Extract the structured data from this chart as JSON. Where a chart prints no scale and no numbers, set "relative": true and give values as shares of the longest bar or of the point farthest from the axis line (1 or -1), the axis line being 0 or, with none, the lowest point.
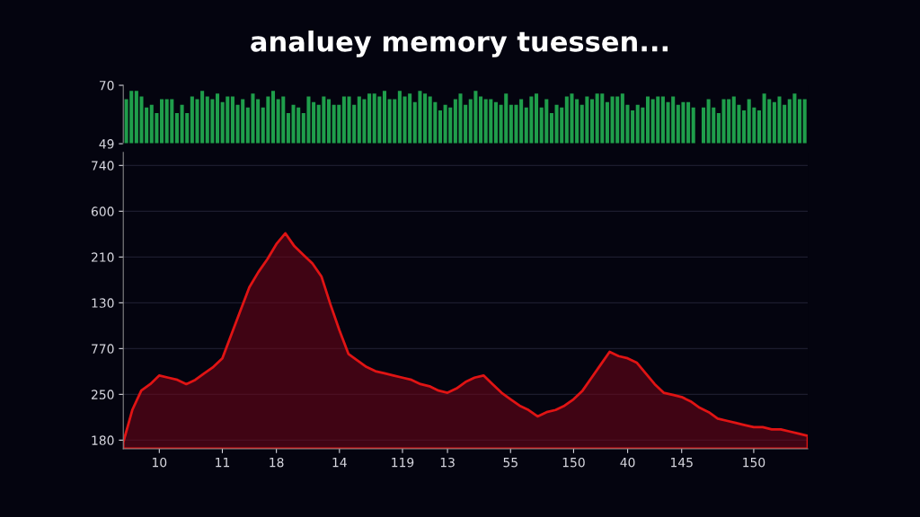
{
  "chart_data": [
    {
      "type": "bar",
      "title": "analuey memory tuessen...",
      "categories": [
        null,
        null,
        null,
        null,
        null,
        null,
        null,
        null,
        null,
        null,
        null,
        null,
        null,
        null,
        null,
        null,
        null,
        null,
        null,
        null,
        null,
        null,
        null,
        null,
        null,
        null,
        null,
        null,
        null,
        null,
        null,
        null,
        null,
        null,
        null,
        null,
        null,
        null,
        null,
        null,
        null,
        null,
        null,
        null,
        null,
        null,
        null,
        null,
        null,
        null,
        null,
        null,
        null,
        null,
        null,
        null,
        null,
        null,
        null,
        null,
        null,
        null,
        null,
        null,
        null,
        null,
        null,
        null,
        null,
        null,
        null,
        null,
        null,
        null,
        null,
        null,
        null,
        null,
        null,
        null,
        null,
        null,
        null,
        null,
        null,
        null,
        null,
        null,
        null,
        null,
        null,
        null,
        null,
        null,
        null,
        null,
        null,
        null,
        null,
        null,
        null,
        null,
        null,
        null,
        null,
        null,
        null,
        null,
        null,
        null,
        null,
        null,
        null,
        null,
        null,
        null,
        null,
        null,
        null,
        null,
        null,
        null,
        null,
        null,
        null,
        null,
        null,
        null,
        null,
        null,
        null,
        null,
        null,
        null,
        null
      ],
      "values": [
        65,
        68,
        68,
        66,
        62,
        63,
        60,
        65,
        65,
        65,
        60,
        63,
        60,
        66,
        65,
        68,
        66,
        65,
        67,
        64,
        66,
        66,
        63,
        65,
        62,
        67,
        65,
        62,
        66,
        68,
        65,
        66,
        60,
        63,
        62,
        60,
        66,
        64,
        63,
        66,
        65,
        63,
        63,
        66,
        66,
        63,
        66,
        65,
        67,
        67,
        66,
        68,
        65,
        65,
        68,
        66,
        67,
        64,
        68,
        67,
        66,
        64,
        61,
        63,
        62,
        65,
        67,
        63,
        65,
        68,
        66,
        65,
        65,
        64,
        63,
        67,
        63,
        63,
        65,
        62,
        66,
        67,
        62,
        65,
        60,
        63,
        62,
        66,
        67,
        65,
        63,
        66,
        65,
        67,
        67,
        64,
        66,
        66,
        67,
        63,
        61,
        63,
        62,
        66,
        65,
        66,
        66,
        64,
        66,
        63,
        64,
        64,
        62,
        null,
        62,
        65,
        62,
        60,
        65,
        65,
        66,
        63,
        61,
        65,
        62,
        61,
        67,
        65,
        64,
        66,
        63,
        65,
        67,
        65,
        65
      ],
      "color": "#1f9e4b",
      "ylim": [
        49,
        70
      ],
      "yticks": [
        49,
        70
      ],
      "tick_labels": "y",
      "grid": false
    },
    {
      "type": "area",
      "relative": true,
      "grid": "y",
      "categories": [
        null,
        null,
        null,
        null,
        "10",
        null,
        null,
        null,
        null,
        null,
        null,
        "11",
        null,
        null,
        null,
        null,
        null,
        "18",
        null,
        null,
        null,
        null,
        null,
        null,
        "14",
        null,
        null,
        null,
        null,
        null,
        null,
        "119",
        null,
        null,
        null,
        null,
        "13",
        null,
        null,
        null,
        null,
        null,
        null,
        "55",
        null,
        null,
        null,
        null,
        null,
        null,
        "150",
        null,
        null,
        null,
        null,
        null,
        "40",
        null,
        null,
        null,
        null,
        null,
        "145",
        null,
        null,
        null,
        null,
        null,
        null,
        null,
        "150",
        null,
        null,
        null,
        null,
        null,
        null
      ],
      "annotations": [
        "180",
        "250",
        "770",
        "130",
        "210",
        "600",
        "740"
      ],
      "series": [
        {
          "color": "#e01414",
          "values": [
            0.03,
            0.18,
            0.27,
            0.3,
            0.34,
            0.33,
            0.32,
            0.3,
            0.32,
            0.35,
            0.38,
            0.42,
            0.53,
            0.64,
            0.75,
            0.82,
            0.88,
            0.95,
            1,
            0.94,
            0.9,
            0.86,
            0.8,
            0.67,
            0.55,
            0.44,
            0.41,
            0.38,
            0.36,
            0.35,
            0.34,
            0.33,
            0.32,
            0.3,
            0.29,
            0.27,
            0.26,
            0.28,
            0.31,
            0.33,
            0.34,
            0.3,
            0.26,
            0.23,
            0.2,
            0.18,
            0.15,
            0.17,
            0.18,
            0.2,
            0.23,
            0.27,
            0.33,
            0.39,
            0.45,
            0.43,
            0.42,
            0.4,
            0.35,
            0.3,
            0.26,
            0.25,
            0.24,
            0.22,
            0.19,
            0.17,
            0.14,
            0.13,
            0.12,
            0.11,
            0.1,
            0.1,
            0.09,
            0.09,
            0.08,
            0.07,
            0.06
          ]
        }
      ]
    }
  ]
}
